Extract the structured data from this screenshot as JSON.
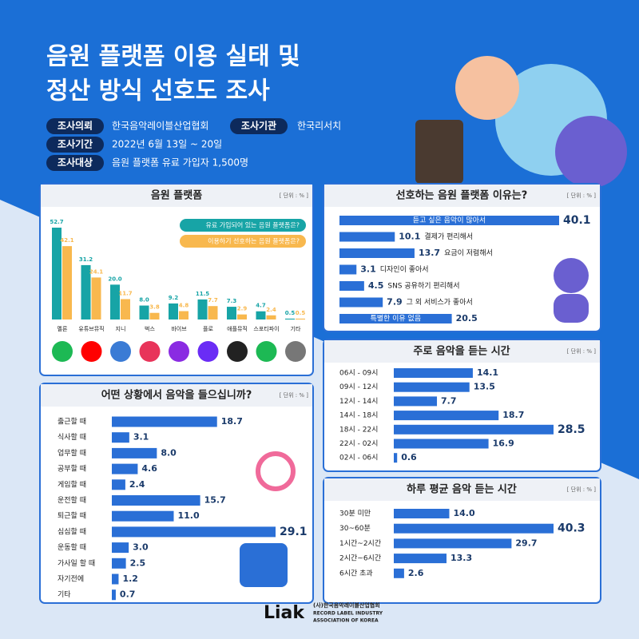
{
  "header": {
    "title": [
      "음원 플랫폼 이용 실태 및",
      "정산 방식 선호도 조사"
    ],
    "info": [
      {
        "label": "조사의뢰",
        "text": "한국음악레이블산업협회"
      },
      {
        "label": "조사기관",
        "text": "한국리서치"
      },
      {
        "label": "조사기간",
        "text": "2022년 6월 13일 ~ 20일"
      },
      {
        "label": "조사대상",
        "text": "음원 플랫폼 유료 가입자 1,500명"
      }
    ]
  },
  "chart_data": [
    {
      "type": "bar",
      "title": "음원 플랫폼",
      "unit": "[ 단위 : % ]",
      "categories": [
        "멜론",
        "유튜브뮤직",
        "지니",
        "벅스",
        "바이브",
        "플로",
        "애플뮤직",
        "스포티파이",
        "기타"
      ],
      "series": [
        {
          "name": "유료 가입되어 있는 음원 플랫폼은?",
          "color": "#17a4a6",
          "values": [
            52.7,
            31.2,
            20.0,
            8.0,
            9.2,
            11.5,
            7.3,
            4.7,
            0.5
          ],
          "value_labels": [
            "52.7",
            "31.2",
            "20.0",
            "8.0",
            "9.2",
            "11.5",
            "7.3",
            "4.7",
            "0.5"
          ]
        },
        {
          "name": "이용하기 선호하는 음원 플랫폼은?",
          "color": "#f8b84e",
          "values": [
            42.1,
            24.1,
            11.7,
            3.8,
            4.8,
            7.7,
            2.9,
            2.4,
            0.5
          ],
          "value_labels": [
            "42.1",
            "24.1",
            "11.7",
            "3.8",
            "4.8",
            "7.7",
            "2.9",
            "2.4",
            "0.5"
          ]
        }
      ]
    },
    {
      "type": "hbar",
      "title": "선호하는 음원 플랫폼 이유는?",
      "unit": "[ 단위 : % ]",
      "color": "#2a6fd6",
      "categories": [
        "듣고 싶은 음악이 많아서",
        "결제가 편리해서",
        "요금이 저렴해서",
        "디자인이 좋아서",
        "SNS 공유하기 편리해서",
        "그 외 서비스가 좋아서",
        "특별한 이유 없음"
      ],
      "values": [
        40.1,
        10.1,
        13.7,
        3.1,
        4.5,
        7.9,
        20.5
      ]
    },
    {
      "type": "hbar",
      "title": "주로 음악을 듣는 시간",
      "unit": "[ 단위 : % ]",
      "color": "#2a6fd6",
      "categories": [
        "06시 - 09시",
        "09시 - 12시",
        "12시 - 14시",
        "14시 - 18시",
        "18시 - 22시",
        "22시 - 02시",
        "02시 - 06시"
      ],
      "values": [
        14.1,
        13.5,
        7.7,
        18.7,
        28.5,
        16.9,
        0.6
      ]
    },
    {
      "type": "hbar",
      "title": "하루 평균 음악 듣는 시간",
      "unit": "[ 단위 : % ]",
      "color": "#2a6fd6",
      "categories": [
        "30분 미만",
        "30~60분",
        "1시간~2시간",
        "2시간~6시간",
        "6시간 초과"
      ],
      "values": [
        14.0,
        40.3,
        29.7,
        13.3,
        2.6
      ],
      "value_labels": [
        "14.0",
        "40.3",
        "29.7",
        "13.3",
        "2.6"
      ]
    },
    {
      "type": "hbar",
      "title": "어떤 상황에서 음악을 들으십니까?",
      "unit": "[ 단위 : % ]",
      "color": "#2a6fd6",
      "categories": [
        "출근할 때",
        "식사할 때",
        "업무할 때",
        "공부할 때",
        "게임할 때",
        "운전할 때",
        "퇴근할 때",
        "심심할 때",
        "운동할 때",
        "가사일 할 때",
        "자기전에",
        "기타"
      ],
      "values": [
        18.7,
        3.1,
        8.0,
        4.6,
        2.4,
        15.7,
        11.0,
        29.1,
        3.0,
        2.5,
        1.2,
        0.7
      ],
      "value_labels": [
        "18.7",
        "3.1",
        "8.0",
        "4.6",
        "2.4",
        "15.7",
        "11.0",
        "29.1",
        "3.0",
        "2.5",
        "1.2",
        "0.7"
      ]
    }
  ],
  "footer": {
    "logo": "Liak",
    "org": "(사)한국음악레이블산업협회",
    "en1": "RECORD LABEL INDUSTRY",
    "en2": "ASSOCIATION OF KOREA"
  }
}
